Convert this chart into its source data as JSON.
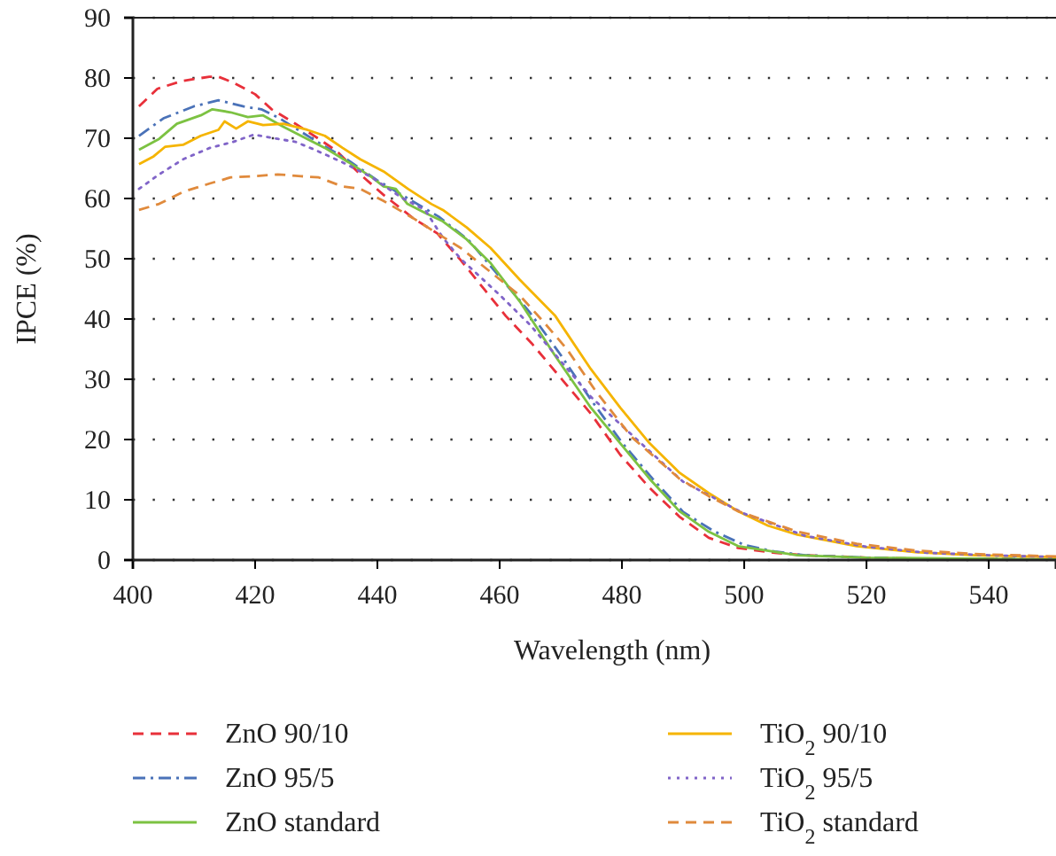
{
  "chart_data": {
    "type": "line",
    "xlabel": "Wavelength (nm)",
    "ylabel": "IPCE (%)",
    "xlim": [
      400,
      551
    ],
    "xticks": [
      400,
      420,
      440,
      460,
      480,
      500,
      520,
      540
    ],
    "ylim": [
      0,
      90
    ],
    "yticks": [
      0,
      10,
      20,
      30,
      40,
      50,
      60,
      70,
      80,
      90
    ],
    "grid": "y",
    "legend": "bottom",
    "marker": "none",
    "series": [
      {
        "name": "ZnO 90/10",
        "color": "#e8303a",
        "line_style": "dashed",
        "x": [
          401,
          404,
          408,
          412.5,
          414,
          416.5,
          420,
          422.7,
          426.6,
          430.4,
          433.3,
          437.2,
          441,
          445.9,
          449.8,
          453.6,
          457.5,
          461,
          465.2,
          470,
          474.9,
          479.7,
          484.5,
          489.4,
          494.2,
          499,
          505,
          510,
          520,
          530,
          540,
          551
        ],
        "values": [
          75.3,
          78.2,
          79.5,
          80.2,
          80.2,
          79.2,
          77.3,
          74.8,
          72.4,
          69.9,
          67.9,
          64,
          60.6,
          56.7,
          54.2,
          49.8,
          44.9,
          40.5,
          36,
          30.2,
          24.3,
          17.5,
          12,
          7.2,
          3.7,
          2,
          1.2,
          0.8,
          0.4,
          0.2,
          0.2,
          0.1
        ]
      },
      {
        "name": "ZnO 95/5",
        "color": "#4a72b8",
        "line_style": "dashdot",
        "x": [
          401,
          405,
          410,
          414,
          418,
          421,
          424,
          430,
          435,
          440,
          445,
          450,
          455,
          460,
          465,
          470,
          475,
          480,
          485,
          490,
          495,
          500,
          505,
          510,
          520,
          530,
          540,
          551
        ],
        "values": [
          70.4,
          73.3,
          75.3,
          76.3,
          75.3,
          74.8,
          73.3,
          69.5,
          66.5,
          63,
          60,
          57,
          53,
          47,
          41,
          34,
          26.5,
          19.5,
          13.5,
          8,
          4.8,
          2.5,
          1.4,
          0.8,
          0.4,
          0.2,
          0.2,
          0.1
        ]
      },
      {
        "name": "ZnO standard",
        "color": "#7cc242",
        "line_style": "solid",
        "x": [
          401,
          404.3,
          407.2,
          411.1,
          413,
          416,
          418.8,
          421.3,
          424.6,
          427.5,
          431.4,
          435.3,
          439.1,
          441,
          443,
          444.9,
          447.8,
          450.7,
          454.6,
          458.5,
          463.3,
          469,
          474.9,
          479.7,
          484.5,
          489.4,
          494.2,
          499,
          508.7,
          520,
          540,
          551
        ],
        "values": [
          68.1,
          69.9,
          72.4,
          73.8,
          74.8,
          74.3,
          73.5,
          73.8,
          71.9,
          70.4,
          68.4,
          66,
          63.5,
          62,
          61.6,
          59.1,
          57.6,
          56.2,
          53.2,
          49.3,
          42.9,
          34,
          25.3,
          19.4,
          13.5,
          8.1,
          4.7,
          2.3,
          0.8,
          0.4,
          0.2,
          0.1
        ]
      },
      {
        "name": "TiO$_{2}$ 90/10",
        "color": "#f5b400",
        "line_style": "solid",
        "x": [
          401,
          403.4,
          405.3,
          408.2,
          411.1,
          414,
          415,
          416.9,
          418.8,
          421.3,
          424.6,
          428.5,
          431.4,
          434.3,
          437.2,
          441,
          445,
          448.8,
          450.7,
          454.6,
          458.5,
          463.3,
          469.1,
          474.9,
          479.7,
          484.5,
          489.4,
          494.2,
          499,
          503.9,
          508.7,
          518.4,
          528,
          537.7,
          551
        ],
        "values": [
          65.7,
          67,
          68.6,
          68.9,
          70.4,
          71.4,
          72.8,
          71.6,
          72.8,
          72.2,
          72.4,
          71.4,
          70.4,
          68.4,
          66.5,
          64.5,
          61.6,
          59.1,
          58.1,
          55.2,
          51.8,
          46.5,
          40.5,
          31.7,
          25.3,
          19.4,
          14.5,
          11.1,
          8.1,
          5.7,
          4.2,
          2.3,
          1.3,
          0.8,
          0.5
        ]
      },
      {
        "name": "TiO$_{2}$ 95/5",
        "color": "#8064c8",
        "line_style": "dotted",
        "x": [
          401,
          404.3,
          408.2,
          412.6,
          416.4,
          419.8,
          423.7,
          426.6,
          429.5,
          434.3,
          439.1,
          444,
          447.8,
          450.7,
          453.6,
          460,
          465,
          470,
          475,
          482,
          490,
          500,
          510,
          520,
          530,
          540,
          551
        ],
        "values": [
          61.6,
          64,
          66.5,
          68.4,
          69.4,
          70.6,
          69.9,
          69.4,
          68.2,
          66,
          63.5,
          60.1,
          58.1,
          53.5,
          50,
          44,
          39,
          33,
          27,
          20.4,
          13,
          7.7,
          4,
          2.2,
          1.2,
          0.8,
          0.5
        ]
      },
      {
        "name": "TiO$_{2}$ standard",
        "color": "#e08a3c",
        "line_style": "dashed",
        "x": [
          401,
          404.3,
          408.2,
          412.6,
          416,
          419.8,
          423.7,
          427.5,
          430.4,
          434.3,
          437.2,
          441,
          445.9,
          449.8,
          453.6,
          458.5,
          463.3,
          467.2,
          471,
          475.6,
          481.6,
          489.4,
          494.2,
          499,
          508.7,
          518.4,
          528,
          537.7,
          551
        ],
        "values": [
          58.1,
          59.1,
          61.1,
          62.5,
          63.5,
          63.7,
          64,
          63.7,
          63.5,
          62,
          61.6,
          59.6,
          56.7,
          54.2,
          51.8,
          47.8,
          43.9,
          39.5,
          35,
          28.2,
          20.4,
          13.5,
          10.6,
          8.1,
          4.7,
          2.7,
          1.6,
          1,
          0.6
        ]
      }
    ]
  }
}
